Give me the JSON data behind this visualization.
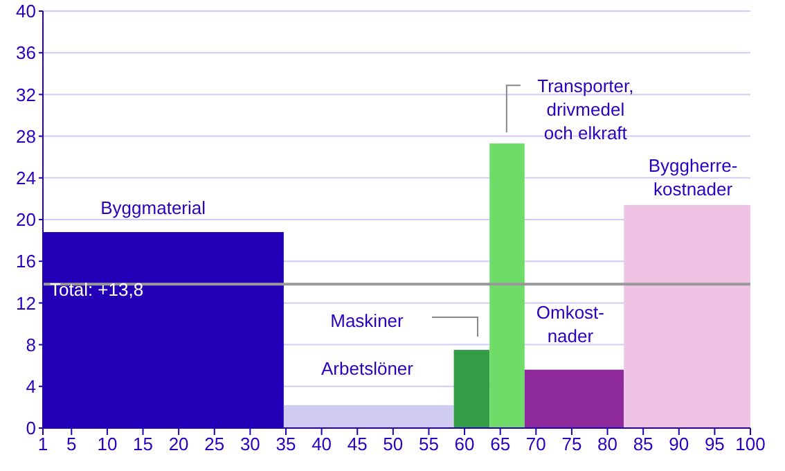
{
  "chart_data": {
    "type": "histogram",
    "bins": [
      1,
      34.7,
      58.5,
      63.5,
      68.4,
      82.3,
      100
    ],
    "values": [
      18.8,
      2.2,
      7.5,
      27.3,
      5.6,
      21.4
    ],
    "colors": [
      "#2200b8",
      "#d0cbf0",
      "#339c47",
      "#6fdc6a",
      "#8e2a9b",
      "#efc3e3"
    ],
    "xlim": [
      1,
      100
    ],
    "xticks": [
      1,
      5,
      10,
      15,
      20,
      25,
      30,
      35,
      40,
      45,
      50,
      55,
      60,
      65,
      70,
      75,
      80,
      85,
      90,
      95,
      100
    ],
    "ylim": [
      0,
      40
    ],
    "yticks": [
      0,
      4,
      8,
      12,
      16,
      20,
      24,
      28,
      32,
      36,
      40
    ],
    "grid": "y",
    "ref_lines": [
      {
        "axis": "y",
        "value": 13.8,
        "label": "Total: +13,8",
        "color": "#999999"
      }
    ],
    "annotations": [
      {
        "text": "Byggmaterial",
        "x": 17,
        "y": 18.8
      },
      {
        "text": "Arbetslöner",
        "x": 46,
        "y": 2.2
      },
      "Maskiner",
      {
        "text": "Transporter,\ndrivmedel\noch elkraft",
        "x": 65.5,
        "y": 27.3
      },
      {
        "text": "Omkost-\nnader",
        "x": 75,
        "y": 5.6
      },
      {
        "text": "Byggherre-\nkostnader",
        "x": 91,
        "y": 21.4
      }
    ]
  }
}
